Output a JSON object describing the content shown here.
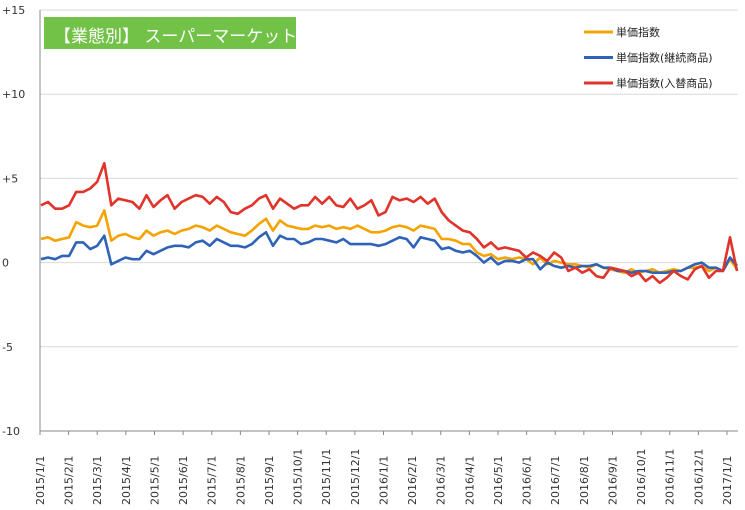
{
  "chart_data": {
    "type": "line",
    "title": "【業態別】 スーパーマーケット",
    "colors": {
      "title_bg": "#72c247",
      "grid": "#d9d9d9",
      "axis": "#888888"
    },
    "y_ticks": [
      "+15",
      "+10",
      "+5",
      "0",
      "-5",
      "-10"
    ],
    "y_tick_values": [
      15,
      10,
      5,
      0,
      -5,
      -10
    ],
    "ylim": [
      -10,
      15
    ],
    "x_tick_labels": [
      "2015/1/1",
      "2015/2/1",
      "2015/3/1",
      "2015/4/1",
      "2015/5/1",
      "2015/6/1",
      "2015/7/1",
      "2015/8/1",
      "2015/9/1",
      "2015/10/1",
      "2015/11/1",
      "2015/12/1",
      "2016/1/1",
      "2016/2/1",
      "2016/3/1",
      "2016/4/1",
      "2016/5/1",
      "2016/6/1",
      "2016/7/1",
      "2016/8/1",
      "2016/9/1",
      "2016/10/1",
      "2016/11/1",
      "2016/12/1",
      "2017/1/1"
    ],
    "legend": [
      {
        "name": "単価指数",
        "color": "#f5a300"
      },
      {
        "name": "単価指数(継続商品)",
        "color": "#2e63b8"
      },
      {
        "name": "単価指数(入替商品)",
        "color": "#e0332a"
      }
    ],
    "grid": true,
    "legend_position": "top-right",
    "points_per_series": 100,
    "series": [
      {
        "name": "単価指数",
        "color": "#f5a300",
        "values": [
          1.4,
          1.5,
          1.3,
          1.4,
          1.5,
          2.4,
          2.2,
          2.1,
          2.2,
          3.1,
          1.3,
          1.6,
          1.7,
          1.5,
          1.4,
          1.9,
          1.6,
          1.8,
          1.9,
          1.7,
          1.9,
          2.0,
          2.2,
          2.1,
          1.9,
          2.2,
          2.0,
          1.8,
          1.7,
          1.6,
          1.9,
          2.3,
          2.6,
          1.9,
          2.5,
          2.2,
          2.1,
          2.0,
          2.0,
          2.2,
          2.1,
          2.2,
          2.0,
          2.1,
          2.0,
          2.2,
          2.0,
          1.8,
          1.8,
          1.9,
          2.1,
          2.2,
          2.1,
          1.9,
          2.2,
          2.1,
          2.0,
          1.4,
          1.4,
          1.3,
          1.1,
          1.1,
          0.6,
          0.4,
          0.5,
          0.2,
          0.3,
          0.2,
          0.3,
          0.2,
          -0.1,
          0.3,
          -0.1,
          0.1,
          0.0,
          -0.1,
          -0.1,
          -0.2,
          -0.3,
          -0.1,
          -0.3,
          -0.4,
          -0.5,
          -0.6,
          -0.4,
          -0.6,
          -0.5,
          -0.4,
          -0.6,
          -0.5,
          -0.4,
          -0.5,
          -0.3,
          -0.3,
          -0.2,
          -0.5,
          -0.3,
          -0.5,
          0.2,
          -0.4
        ]
      },
      {
        "name": "単価指数(継続商品)",
        "color": "#2e63b8",
        "values": [
          0.2,
          0.3,
          0.2,
          0.4,
          0.4,
          1.2,
          1.2,
          0.8,
          1.0,
          1.6,
          -0.1,
          0.1,
          0.3,
          0.2,
          0.2,
          0.7,
          0.5,
          0.7,
          0.9,
          1.0,
          1.0,
          0.9,
          1.2,
          1.3,
          1.0,
          1.4,
          1.2,
          1.0,
          1.0,
          0.9,
          1.1,
          1.5,
          1.8,
          1.0,
          1.6,
          1.4,
          1.4,
          1.1,
          1.2,
          1.4,
          1.4,
          1.3,
          1.2,
          1.4,
          1.1,
          1.1,
          1.1,
          1.1,
          1.0,
          1.1,
          1.3,
          1.5,
          1.4,
          0.9,
          1.5,
          1.4,
          1.3,
          0.8,
          0.9,
          0.7,
          0.6,
          0.7,
          0.4,
          0.0,
          0.3,
          -0.1,
          0.1,
          0.1,
          0.0,
          0.2,
          0.2,
          -0.4,
          0.0,
          -0.2,
          -0.3,
          -0.2,
          -0.3,
          -0.2,
          -0.2,
          -0.1,
          -0.3,
          -0.3,
          -0.5,
          -0.5,
          -0.6,
          -0.5,
          -0.5,
          -0.6,
          -0.6,
          -0.6,
          -0.5,
          -0.5,
          -0.3,
          -0.1,
          0.0,
          -0.3,
          -0.3,
          -0.5,
          0.3,
          -0.2
        ]
      },
      {
        "name": "単価指数(入替商品)",
        "color": "#e0332a",
        "values": [
          3.4,
          3.6,
          3.2,
          3.2,
          3.4,
          4.2,
          4.2,
          4.4,
          4.8,
          5.9,
          3.4,
          3.8,
          3.7,
          3.6,
          3.2,
          4.0,
          3.3,
          3.7,
          4.0,
          3.2,
          3.6,
          3.8,
          4.0,
          3.9,
          3.5,
          3.9,
          3.6,
          3.0,
          2.9,
          3.2,
          3.4,
          3.8,
          4.0,
          3.2,
          3.8,
          3.5,
          3.2,
          3.4,
          3.4,
          3.9,
          3.5,
          3.9,
          3.4,
          3.3,
          3.8,
          3.2,
          3.4,
          3.7,
          2.8,
          3.0,
          3.9,
          3.7,
          3.8,
          3.6,
          3.9,
          3.5,
          3.8,
          3.0,
          2.5,
          2.2,
          1.9,
          1.8,
          1.4,
          0.9,
          1.2,
          0.8,
          0.9,
          0.8,
          0.7,
          0.3,
          0.6,
          0.4,
          0.1,
          0.6,
          0.3,
          -0.5,
          -0.3,
          -0.6,
          -0.4,
          -0.8,
          -0.9,
          -0.3,
          -0.4,
          -0.5,
          -0.8,
          -0.6,
          -1.1,
          -0.8,
          -1.2,
          -0.9,
          -0.5,
          -0.8,
          -1.0,
          -0.4,
          -0.2,
          -0.9,
          -0.5,
          -0.5,
          1.5,
          -0.5
        ]
      }
    ]
  }
}
